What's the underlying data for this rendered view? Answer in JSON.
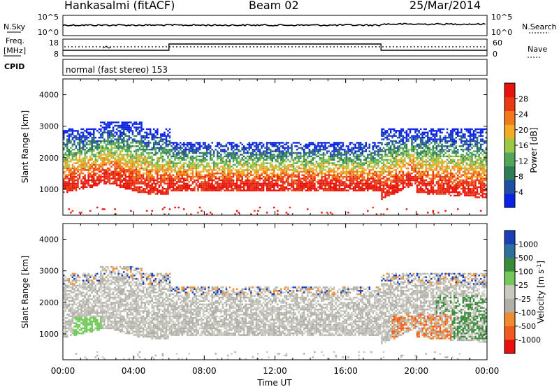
{
  "header": {
    "station": "Hankasalmi (fitACF)",
    "beam": "Beam 02",
    "date": "25/Mar/2014"
  },
  "strips": {
    "nsky_label": "N.Sky",
    "nsearch_label": "N.Search",
    "count_ticks_left": [
      "10^5",
      "10^0"
    ],
    "count_ticks_right": [
      "10^5",
      "10^0"
    ],
    "freq_label_1": "Freq.",
    "freq_label_2": "[MHz]",
    "freq_ticks": [
      "18",
      "8"
    ],
    "nave_label": "Nave",
    "nave_ticks": [
      "60",
      "0"
    ],
    "cpid_label": "CPID",
    "cpid_text": "normal (fast stereo) 153"
  },
  "colors": {
    "power_scale": [
      "#0a22e6",
      "#1f4fa0",
      "#2e7d56",
      "#52a65a",
      "#9ec748",
      "#f3ad25",
      "#f27a1b",
      "#e83b13",
      "#e8130c"
    ],
    "velocity_scale": [
      "#1a3fb8",
      "#2f6fa0",
      "#3b8a3c",
      "#72c95a",
      "#c9c9bf",
      "#b0b0a8",
      "#f08c30",
      "#f05a20",
      "#e81010"
    ]
  },
  "chart_data": [
    {
      "type": "heatmap",
      "title": "Power",
      "xlabel": "Time UT",
      "ylabel": "Slant Range [km]",
      "x_ticks": [
        "00:00",
        "04:00",
        "08:00",
        "12:00",
        "16:00",
        "20:00",
        "00:00"
      ],
      "y_ticks": [
        "1000",
        "2000",
        "3000",
        "4000"
      ],
      "xlim_hours": [
        0,
        24
      ],
      "ylim_km": [
        180,
        4500
      ],
      "colorbar_label": "Power [dB]",
      "colorbar_ticks": [
        "4",
        "8",
        "12",
        "16",
        "20",
        "24",
        "28"
      ],
      "colorbar_range": [
        0,
        32
      ]
    },
    {
      "type": "heatmap",
      "title": "Velocity",
      "xlabel": "Time UT",
      "ylabel": "Slant Range [km]",
      "x_ticks": [
        "00:00",
        "04:00",
        "08:00",
        "12:00",
        "16:00",
        "20:00",
        "00:00"
      ],
      "y_ticks": [
        "1000",
        "2000",
        "3000",
        "4000"
      ],
      "xlim_hours": [
        0,
        24
      ],
      "ylim_km": [
        180,
        4500
      ],
      "colorbar_label": "Velocity [m s-1]",
      "colorbar_ticks": [
        "1000",
        "500",
        "100",
        "25",
        "-25",
        "-100",
        "-500",
        "-1000"
      ]
    }
  ],
  "xlabel": "Time UT"
}
